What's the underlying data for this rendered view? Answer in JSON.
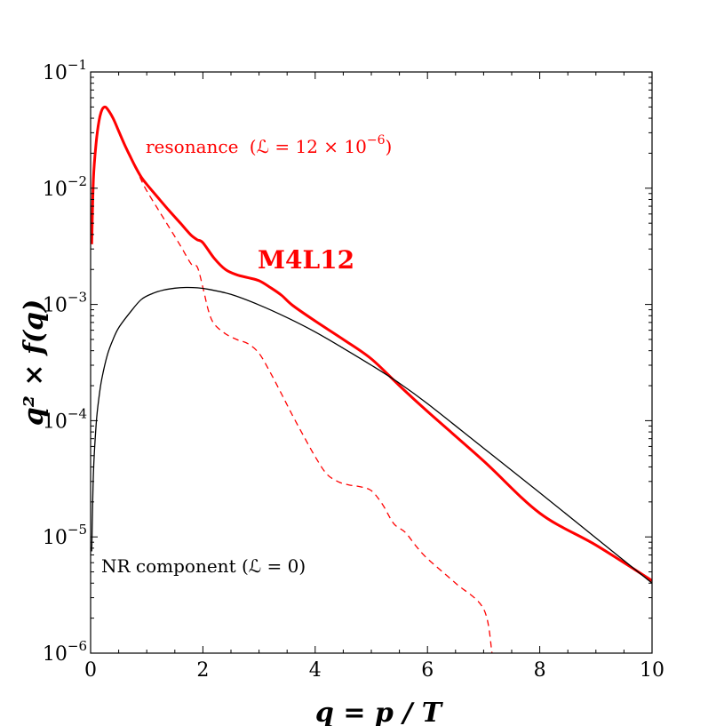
{
  "chart_data": {
    "type": "line",
    "title": "",
    "xlabel": "q = p / T",
    "ylabel": "q² × f(q)",
    "xlim": [
      0,
      10
    ],
    "ylim": [
      1e-06,
      0.1
    ],
    "yscale": "log",
    "grid": false,
    "x_ticks": [
      "0",
      "2",
      "4",
      "6",
      "8",
      "10"
    ],
    "y_ticks": [
      {
        "base": "10",
        "exp": "−1",
        "value": 0.1
      },
      {
        "base": "10",
        "exp": "−2",
        "value": 0.01
      },
      {
        "base": "10",
        "exp": "−3",
        "value": 0.001
      },
      {
        "base": "10",
        "exp": "−4",
        "value": 0.0001
      },
      {
        "base": "10",
        "exp": "−5",
        "value": 1e-05
      },
      {
        "base": "10",
        "exp": "−6",
        "value": 1e-06
      }
    ],
    "series": [
      {
        "name": "M4L12",
        "style": "solid-thick",
        "color": "#ff0000",
        "x": [
          0.02,
          0.05,
          0.1,
          0.15,
          0.2,
          0.25,
          0.3,
          0.4,
          0.5,
          0.6,
          0.7,
          0.8,
          0.9,
          1.0,
          1.2,
          1.4,
          1.6,
          1.7,
          1.8,
          1.9,
          2.0,
          2.2,
          2.4,
          2.6,
          2.8,
          3.0,
          3.2,
          3.4,
          3.6,
          4.0,
          4.5,
          5.0,
          5.5,
          6.0,
          7.0,
          8.0,
          9.0,
          10.0
        ],
        "y": [
          0.0033,
          0.012,
          0.025,
          0.038,
          0.047,
          0.05,
          0.048,
          0.04,
          0.031,
          0.024,
          0.019,
          0.0152,
          0.0125,
          0.0108,
          0.0083,
          0.0064,
          0.005,
          0.0044,
          0.0039,
          0.0036,
          0.0034,
          0.0025,
          0.002,
          0.0018,
          0.0017,
          0.0016,
          0.0014,
          0.0012,
          0.00098,
          0.00072,
          0.0005,
          0.00034,
          0.0002,
          0.00012,
          4.5e-05,
          1.6e-05,
          8.5e-06,
          4.2e-06
        ]
      },
      {
        "name": "resonance (ℒ = 12 × 10⁻⁶)",
        "style": "dashed",
        "color": "#ff0000",
        "x": [
          0.8,
          0.9,
          1.0,
          1.2,
          1.4,
          1.6,
          1.8,
          1.9,
          2.0,
          2.1,
          2.2,
          2.4,
          2.6,
          2.8,
          3.0,
          3.2,
          3.4,
          3.6,
          3.8,
          4.0,
          4.2,
          4.4,
          4.6,
          4.8,
          5.0,
          5.2,
          5.4,
          5.6,
          5.8,
          6.0,
          6.5,
          7.0,
          7.15
        ],
        "y": [
          0.0152,
          0.0118,
          0.0095,
          0.0066,
          0.0046,
          0.0032,
          0.0022,
          0.0021,
          0.0014,
          0.00088,
          0.00068,
          0.00056,
          0.0005,
          0.00046,
          0.00038,
          0.00026,
          0.00017,
          0.00011,
          7.3e-05,
          4.9e-05,
          3.5e-05,
          3e-05,
          2.8e-05,
          2.7e-05,
          2.5e-05,
          1.9e-05,
          1.3e-05,
          1.1e-05,
          8.3e-06,
          6.5e-06,
          4e-06,
          2.4e-06,
          1e-06
        ]
      },
      {
        "name": "NR component (ℒ = 0)",
        "style": "solid-thin",
        "color": "#000000",
        "x": [
          0.02,
          0.05,
          0.1,
          0.15,
          0.2,
          0.3,
          0.4,
          0.5,
          0.7,
          0.9,
          1.1,
          1.3,
          1.5,
          1.7,
          1.9,
          2.1,
          2.5,
          3.0,
          3.5,
          4.0,
          4.5,
          5.0,
          5.5,
          6.0,
          7.0,
          8.0,
          9.0,
          10.0
        ],
        "y": [
          7.5e-06,
          3.5e-05,
          9.5e-05,
          0.00016,
          0.00023,
          0.00037,
          0.0005,
          0.00063,
          0.00085,
          0.0011,
          0.00124,
          0.00133,
          0.00138,
          0.0014,
          0.00139,
          0.00135,
          0.00122,
          0.00099,
          0.00077,
          0.00058,
          0.00042,
          0.0003,
          0.00021,
          0.00014,
          5.8e-05,
          2.4e-05,
          9.8e-06,
          4e-06
        ]
      }
    ],
    "annotations": {
      "resonance_label": "resonance",
      "resonance_formula": "(ℒ = 12 × 10",
      "resonance_exp": "−6",
      "resonance_close": ")",
      "nr_label": "NR component (ℒ = 0)",
      "model_label": "M4L12"
    },
    "colors": {
      "accent": "#ff0000",
      "axis": "#000000"
    }
  }
}
